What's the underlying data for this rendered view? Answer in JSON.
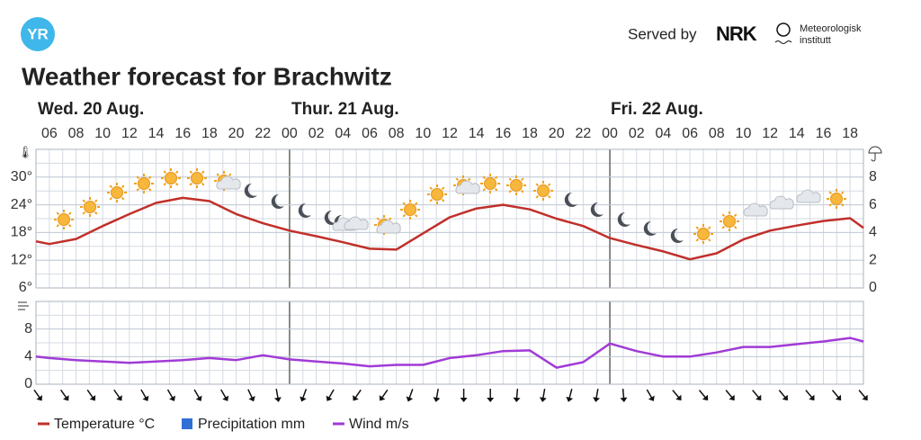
{
  "header": {
    "logo": "YR",
    "served_by": "Served by",
    "nrk": "NRK",
    "met_1": "Meteorologisk",
    "met_2": "institutt",
    "title": "Weather forecast for Brachwitz"
  },
  "chart_data": [
    {
      "type": "line",
      "day_labels": [
        "Wed. 20 Aug.",
        "Thur. 21 Aug.",
        "Fri. 22 Aug."
      ],
      "xlim": [
        5,
        67
      ],
      "xticks": [
        {
          "value": 6,
          "label": "06"
        },
        {
          "value": 8,
          "label": "08"
        },
        10,
        12,
        14,
        16,
        18,
        20,
        22,
        {
          "value": 24,
          "label": "00"
        },
        {
          "value": 26,
          "label": "02"
        },
        {
          "value": 28,
          "label": "04"
        },
        {
          "value": 30,
          "label": "06"
        },
        {
          "value": 32,
          "label": "08"
        },
        {
          "value": 34,
          "label": "10"
        },
        {
          "value": 36,
          "label": "12"
        },
        {
          "value": 38,
          "label": "14"
        },
        {
          "value": 40,
          "label": "16"
        },
        {
          "value": 42,
          "label": "18"
        },
        {
          "value": 44,
          "label": "20"
        },
        {
          "value": 46,
          "label": "22"
        },
        {
          "value": 48,
          "label": "00"
        },
        {
          "value": 50,
          "label": "02"
        },
        {
          "value": 52,
          "label": "04"
        },
        {
          "value": 54,
          "label": "06"
        },
        {
          "value": 56,
          "label": "08"
        },
        {
          "value": 58,
          "label": "10"
        },
        {
          "value": 60,
          "label": "12"
        },
        {
          "value": 62,
          "label": "14"
        },
        {
          "value": 64,
          "label": "16"
        },
        {
          "value": 66,
          "label": "18"
        }
      ],
      "ylim": [
        6,
        36
      ],
      "yticks": [
        {
          "value": 6,
          "label": "6°"
        },
        {
          "value": 12,
          "label": "12°"
        },
        {
          "value": 18,
          "label": "18°"
        },
        {
          "value": 24,
          "label": "24°"
        },
        {
          "value": 30,
          "label": "30°"
        }
      ],
      "y2lim": [
        0,
        10
      ],
      "y2ticks": [
        0,
        2,
        4,
        6,
        8
      ],
      "grid": true,
      "x": [
        5,
        6,
        8,
        10,
        12,
        14,
        16,
        18,
        20,
        22,
        24,
        26,
        28,
        30,
        32,
        34,
        36,
        38,
        40,
        42,
        44,
        46,
        48,
        50,
        52,
        54,
        56,
        58,
        60,
        62,
        64,
        66,
        67
      ],
      "series": [
        {
          "name": "Temperature °C",
          "color": "#c0302a",
          "values": [
            16.1,
            15.5,
            16.6,
            19.4,
            22,
            24.4,
            25.5,
            24.8,
            22,
            20,
            18.4,
            17.2,
            15.9,
            14.5,
            14.3,
            17.8,
            21.3,
            23.2,
            24,
            23,
            21,
            19.4,
            16.8,
            15.3,
            13.9,
            12.2,
            13.5,
            16.5,
            18.4,
            19.5,
            20.5,
            21.1,
            19
          ]
        },
        {
          "name": "Precipitation mm",
          "color": "#2f6fd6",
          "axis": "y2",
          "values": [
            0,
            0,
            0,
            0,
            0,
            0,
            0,
            0,
            0,
            0,
            0,
            0,
            0,
            0,
            0,
            0,
            0,
            0,
            0,
            0,
            0,
            0,
            0,
            0,
            0,
            0,
            0,
            0,
            0,
            0,
            0,
            0,
            0
          ]
        }
      ]
    },
    {
      "type": "line",
      "xlim": [
        5,
        67
      ],
      "ylim": [
        0,
        12
      ],
      "yticks": [
        0,
        4,
        8
      ],
      "grid": true,
      "x": [
        5,
        6,
        8,
        10,
        12,
        14,
        16,
        18,
        20,
        22,
        24,
        26,
        28,
        30,
        32,
        34,
        36,
        38,
        40,
        42,
        44,
        46,
        48,
        50,
        52,
        54,
        56,
        58,
        60,
        62,
        64,
        66,
        67
      ],
      "series": [
        {
          "name": "Wind m/s",
          "color": "#a03bd6",
          "values": [
            4.0,
            3.8,
            3.5,
            3.3,
            3.1,
            3.3,
            3.5,
            3.8,
            3.5,
            4.2,
            3.6,
            3.3,
            3.0,
            2.6,
            2.8,
            2.8,
            3.8,
            4.2,
            4.8,
            4.9,
            2.4,
            3.2,
            5.9,
            4.8,
            4.0,
            4.0,
            4.6,
            5.4,
            5.4,
            5.8,
            6.2,
            6.7,
            6.2
          ]
        }
      ]
    }
  ]
}
